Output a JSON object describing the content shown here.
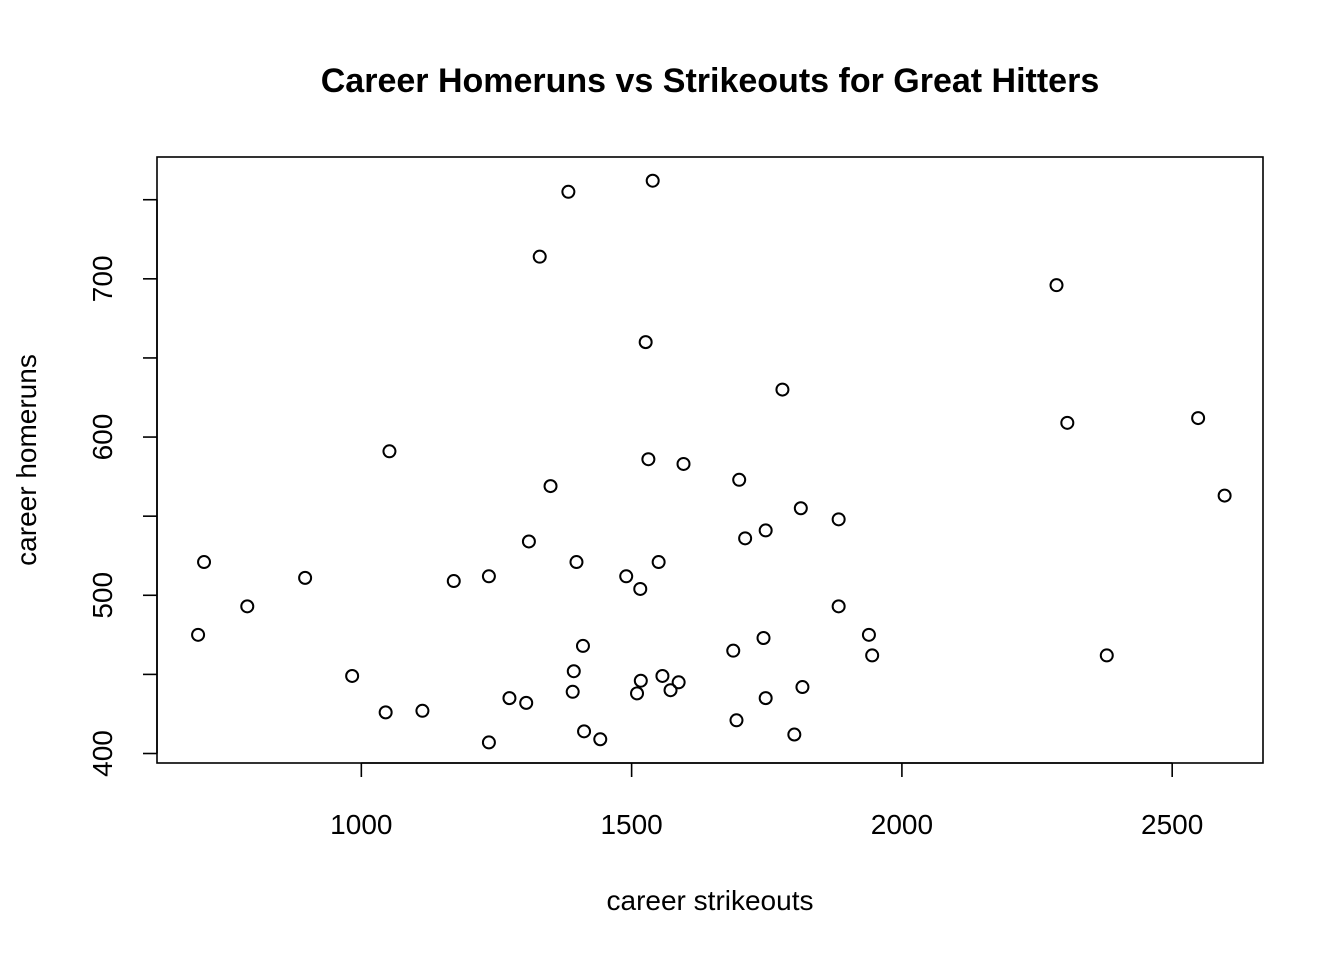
{
  "chart_data": {
    "type": "scatter",
    "title": "Career Homeruns vs Strikeouts for Great Hitters",
    "xlabel": "career strikeouts",
    "ylabel": "career homeruns",
    "xlim": [
      622,
      2668
    ],
    "ylim": [
      394,
      777
    ],
    "xticks": [
      1000,
      1500,
      2000,
      2500
    ],
    "yticks": [
      400,
      450,
      500,
      550,
      600,
      650,
      700,
      750
    ],
    "yticklabels": [
      "400",
      "",
      "500",
      "",
      "600",
      "",
      "700",
      ""
    ],
    "grid": false,
    "marker": "open-circle",
    "points": [
      {
        "x": 1383,
        "y": 755
      },
      {
        "x": 1539,
        "y": 762
      },
      {
        "x": 1330,
        "y": 714
      },
      {
        "x": 2286,
        "y": 696
      },
      {
        "x": 1526,
        "y": 660
      },
      {
        "x": 1779,
        "y": 630
      },
      {
        "x": 2548,
        "y": 612
      },
      {
        "x": 2306,
        "y": 609
      },
      {
        "x": 1052,
        "y": 591
      },
      {
        "x": 1531,
        "y": 586
      },
      {
        "x": 1596,
        "y": 583
      },
      {
        "x": 1699,
        "y": 573
      },
      {
        "x": 1350,
        "y": 569
      },
      {
        "x": 2597,
        "y": 563
      },
      {
        "x": 1813,
        "y": 555
      },
      {
        "x": 1883,
        "y": 548
      },
      {
        "x": 1748,
        "y": 541
      },
      {
        "x": 1710,
        "y": 536
      },
      {
        "x": 1310,
        "y": 534
      },
      {
        "x": 709,
        "y": 521
      },
      {
        "x": 1398,
        "y": 521
      },
      {
        "x": 1550,
        "y": 521
      },
      {
        "x": 1236,
        "y": 512
      },
      {
        "x": 1490,
        "y": 512
      },
      {
        "x": 896,
        "y": 511
      },
      {
        "x": 1171,
        "y": 509
      },
      {
        "x": 1516,
        "y": 504
      },
      {
        "x": 789,
        "y": 493
      },
      {
        "x": 1883,
        "y": 493
      },
      {
        "x": 698,
        "y": 475
      },
      {
        "x": 1939,
        "y": 475
      },
      {
        "x": 1744,
        "y": 473
      },
      {
        "x": 1410,
        "y": 468
      },
      {
        "x": 1688,
        "y": 465
      },
      {
        "x": 1945,
        "y": 462
      },
      {
        "x": 2379,
        "y": 462
      },
      {
        "x": 1393,
        "y": 452
      },
      {
        "x": 983,
        "y": 449
      },
      {
        "x": 1557,
        "y": 449
      },
      {
        "x": 1517,
        "y": 446
      },
      {
        "x": 1587,
        "y": 445
      },
      {
        "x": 1816,
        "y": 442
      },
      {
        "x": 1572,
        "y": 440
      },
      {
        "x": 1391,
        "y": 439
      },
      {
        "x": 1510,
        "y": 438
      },
      {
        "x": 1274,
        "y": 435
      },
      {
        "x": 1748,
        "y": 435
      },
      {
        "x": 1305,
        "y": 432
      },
      {
        "x": 1113,
        "y": 427
      },
      {
        "x": 1045,
        "y": 426
      },
      {
        "x": 1694,
        "y": 421
      },
      {
        "x": 1412,
        "y": 414
      },
      {
        "x": 1801,
        "y": 412
      },
      {
        "x": 1442,
        "y": 409
      },
      {
        "x": 1236,
        "y": 407
      }
    ]
  }
}
